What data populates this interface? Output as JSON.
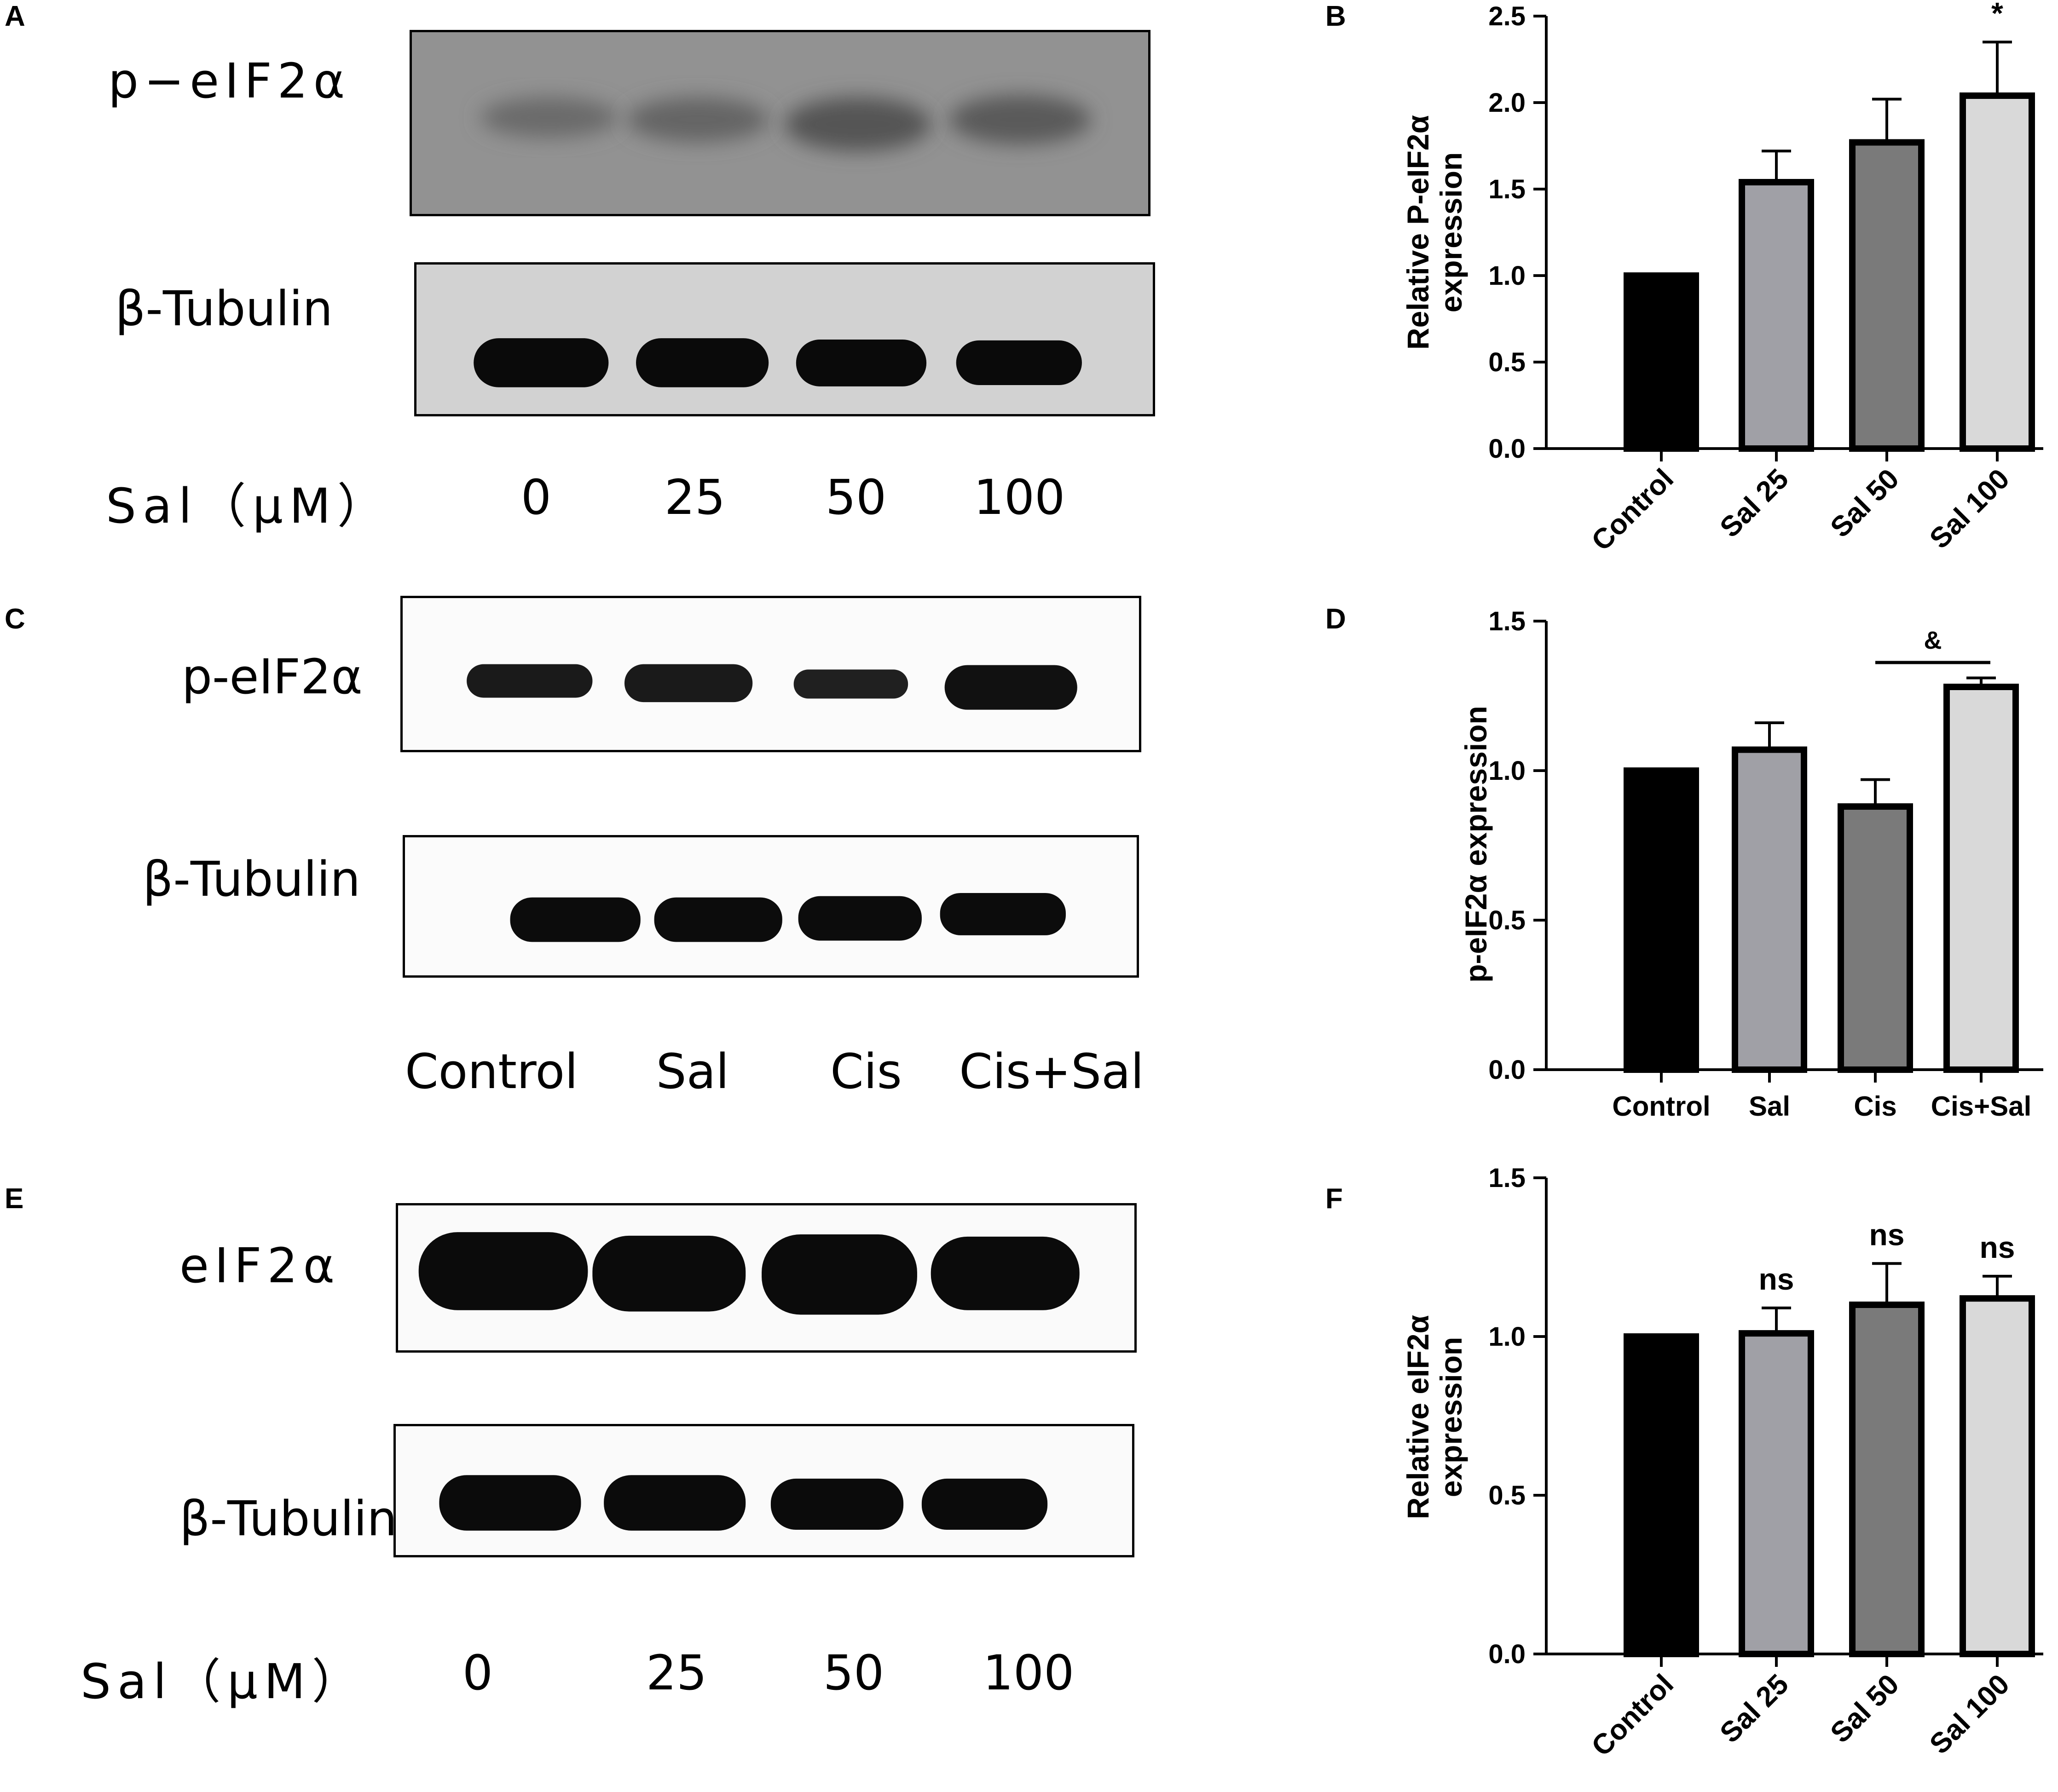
{
  "panels": {
    "A": {
      "letter": "A",
      "target_label": "p−eIF2α",
      "loading_label": "β-Tubulin",
      "concentration_label": "Sal（μM）",
      "lanes": [
        "0",
        "25",
        "50",
        "100"
      ]
    },
    "C": {
      "letter": "C",
      "target_label": "p-eIF2α",
      "loading_label": "β-Tubulin",
      "lanes": [
        "Control",
        "Sal",
        "Cis",
        "Cis+Sal"
      ]
    },
    "E": {
      "letter": "E",
      "target_label": "eIF2α",
      "loading_label": "β-Tubulin",
      "concentration_label": "Sal（μM）",
      "lanes": [
        "0",
        "25",
        "50",
        "100"
      ]
    }
  },
  "chart_data": [
    {
      "panel": "B",
      "type": "bar",
      "categories": [
        "Control",
        "Sal 25",
        "Sal 50",
        "Sal 100"
      ],
      "values": [
        1.0,
        1.54,
        1.77,
        2.04
      ],
      "errors": [
        0,
        0.18,
        0.25,
        0.31
      ],
      "annotations": [
        "",
        "",
        "",
        "*"
      ],
      "ylabel": [
        "Relative P-eIF2α",
        "expression"
      ],
      "ylim": [
        0,
        2.5
      ],
      "yticks": [
        "0.0",
        "0.5",
        "1.0",
        "1.5",
        "2.0",
        "2.5"
      ],
      "bar_colors": [
        "#000000",
        "#a0a0a6",
        "#7a7a7a",
        "#d9d9d9"
      ],
      "rotate_xlabels": true
    },
    {
      "panel": "D",
      "type": "bar",
      "categories": [
        "Control",
        "Sal",
        "Cis",
        "Cis+Sal"
      ],
      "values": [
        1.0,
        1.07,
        0.88,
        1.28
      ],
      "errors": [
        0,
        0.09,
        0.09,
        0.03
      ],
      "annotations": [
        "",
        "",
        "",
        ""
      ],
      "bracket": {
        "from": 2,
        "to": 3,
        "label": "&"
      },
      "ylabel": [
        "p-eIF2α expression"
      ],
      "ylim": [
        0,
        1.5
      ],
      "yticks": [
        "0.0",
        "0.5",
        "1.0",
        "1.5"
      ],
      "bar_colors": [
        "#000000",
        "#a0a0a6",
        "#7a7a7a",
        "#d9d9d9"
      ],
      "rotate_xlabels": false
    },
    {
      "panel": "F",
      "type": "bar",
      "categories": [
        "Control",
        "Sal 25",
        "Sal 50",
        "Sal 100"
      ],
      "values": [
        1.0,
        1.01,
        1.1,
        1.12
      ],
      "errors": [
        0,
        0.08,
        0.13,
        0.07
      ],
      "annotations": [
        "",
        "ns",
        "ns",
        "ns"
      ],
      "ylabel": [
        "Relative eIF2α",
        "expression"
      ],
      "ylim": [
        0,
        1.5
      ],
      "yticks": [
        "0.0",
        "0.5",
        "1.0",
        "1.5"
      ],
      "bar_colors": [
        "#000000",
        "#a0a0a6",
        "#7a7a7a",
        "#d9d9d9"
      ],
      "rotate_xlabels": true
    }
  ]
}
